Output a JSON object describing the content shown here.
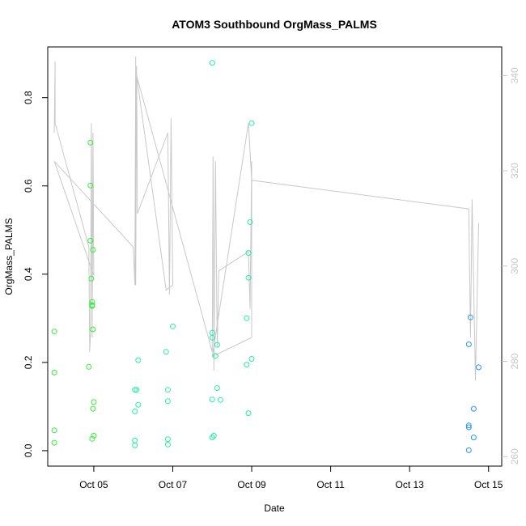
{
  "chart_data": {
    "type": "scatter",
    "title": "ATOM3 Southbound OrgMass_PALMS",
    "xlabel": "Date",
    "ylabel": "OrgMass_PALMS",
    "x_ticks": [
      "Oct 05",
      "Oct 07",
      "Oct 09",
      "Oct 11",
      "Oct 13",
      "Oct 15"
    ],
    "y_ticks": [
      "0.0",
      "0.2",
      "0.4",
      "0.6",
      "0.8"
    ],
    "y2_ticks": [
      "260",
      "280",
      "300",
      "320",
      "340"
    ],
    "xlim": [
      "Oct 03 20:00",
      "Oct 15 08:00"
    ],
    "ylim": [
      -0.035,
      0.915
    ],
    "y2lim": [
      258,
      346
    ],
    "colors": {
      "early_points": "#33ee33",
      "mid_points": "#22eeaa",
      "late_points": "#2299ee",
      "overlay_line": "#c8c8c8"
    },
    "series": [
      {
        "points": [
          [
            "Oct 04 00:00",
            0.27
          ],
          [
            "Oct 04 00:00",
            0.177
          ],
          [
            "Oct 04 00:00",
            0.046
          ],
          [
            "Oct 04 00:00",
            0.018
          ],
          [
            "Oct 04 21:00",
            0.19
          ],
          [
            "Oct 04 22:00",
            0.698
          ],
          [
            "Oct 04 22:00",
            0.601
          ],
          [
            "Oct 04 22:00",
            0.476
          ],
          [
            "Oct 04 22:30",
            0.39
          ],
          [
            "Oct 04 23:00",
            0.337
          ],
          [
            "Oct 04 23:00",
            0.33
          ],
          [
            "Oct 04 23:00",
            0.328
          ],
          [
            "Oct 04 23:00",
            0.027
          ],
          [
            "Oct 04 23:30",
            0.455
          ],
          [
            "Oct 04 23:30",
            0.275
          ],
          [
            "Oct 04 23:30",
            0.095
          ],
          [
            "Oct 05 00:00",
            0.11
          ],
          [
            "Oct 05 00:00",
            0.034
          ]
        ]
      },
      {
        "points": [
          [
            "Oct 06 01:00",
            0.138
          ],
          [
            "Oct 06 01:00",
            0.089
          ],
          [
            "Oct 06 01:00",
            0.023
          ],
          [
            "Oct 06 01:00",
            0.012
          ],
          [
            "Oct 06 02:00",
            0.138
          ],
          [
            "Oct 06 03:00",
            0.205
          ],
          [
            "Oct 06 03:00",
            0.104
          ],
          [
            "Oct 06 20:00",
            0.224
          ],
          [
            "Oct 06 21:00",
            0.138
          ],
          [
            "Oct 06 21:00",
            0.112
          ],
          [
            "Oct 06 21:00",
            0.026
          ],
          [
            "Oct 06 21:00",
            0.014
          ],
          [
            "Oct 07 00:00",
            0.282
          ]
        ]
      },
      {
        "points": [
          [
            "Oct 08 00:00",
            0.879
          ],
          [
            "Oct 08 00:00",
            0.267
          ],
          [
            "Oct 08 00:00",
            0.256
          ],
          [
            "Oct 08 00:00",
            0.116
          ],
          [
            "Oct 08 00:00",
            0.03
          ],
          [
            "Oct 08 01:00",
            0.034
          ],
          [
            "Oct 08 02:00",
            0.215
          ],
          [
            "Oct 08 03:00",
            0.24
          ],
          [
            "Oct 08 03:00",
            0.142
          ],
          [
            "Oct 08 05:00",
            0.115
          ],
          [
            "Oct 08 21:00",
            0.3
          ],
          [
            "Oct 08 21:00",
            0.195
          ],
          [
            "Oct 08 22:00",
            0.448
          ],
          [
            "Oct 08 22:00",
            0.392
          ],
          [
            "Oct 08 22:00",
            0.085
          ],
          [
            "Oct 08 23:00",
            0.518
          ],
          [
            "Oct 09 00:00",
            0.742
          ],
          [
            "Oct 09 00:00",
            0.208
          ]
        ]
      },
      {
        "points": [
          [
            "Oct 14 12:00",
            0.241
          ],
          [
            "Oct 14 12:00",
            0.057
          ],
          [
            "Oct 14 12:00",
            0.053
          ],
          [
            "Oct 14 12:00",
            0.001
          ],
          [
            "Oct 14 13:00",
            0.302
          ],
          [
            "Oct 14 15:00",
            0.095
          ],
          [
            "Oct 14 15:00",
            0.03
          ],
          [
            "Oct 14 18:00",
            0.189
          ]
        ]
      }
    ],
    "overlay_line": {
      "axis": "right",
      "points": [
        [
          "Oct 04 00:00",
          328
        ],
        [
          "Oct 04 00:30",
          343
        ],
        [
          "Oct 04 00:30",
          330
        ],
        [
          "Oct 04 21:00",
          304
        ],
        [
          "Oct 04 21:30",
          282
        ],
        [
          "Oct 04 22:00",
          286
        ],
        [
          "Oct 04 22:30",
          330
        ],
        [
          "Oct 04 23:00",
          285
        ],
        [
          "Oct 04 23:30",
          328
        ],
        [
          "Oct 05 00:00",
          298
        ],
        [
          "Oct 04 00:00",
          322
        ],
        [
          "Oct 06 00:00",
          304
        ],
        [
          "Oct 06 01:00",
          296
        ],
        [
          "Oct 06 01:30",
          344
        ],
        [
          "Oct 06 01:30",
          296
        ],
        [
          "Oct 06 02:00",
          342
        ],
        [
          "Oct 06 02:30",
          311
        ],
        [
          "Oct 06 21:00",
          328
        ],
        [
          "Oct 06 22:00",
          294
        ],
        [
          "Oct 06 23:00",
          331
        ],
        [
          "Oct 07 00:00",
          296
        ],
        [
          "Oct 06 20:00",
          295
        ],
        [
          "Oct 06 02:00",
          340
        ],
        [
          "Oct 08 00:00",
          282
        ],
        [
          "Oct 08 00:30",
          323
        ],
        [
          "Oct 08 01:00",
          278
        ],
        [
          "Oct 08 02:00",
          322
        ],
        [
          "Oct 08 03:00",
          283
        ],
        [
          "Oct 08 04:00",
          299
        ],
        [
          "Oct 08 22:00",
          303
        ],
        [
          "Oct 08 23:00",
          291
        ],
        [
          "Oct 09 00:00",
          322
        ],
        [
          "Oct 09 00:00",
          285
        ],
        [
          "Oct 08 00:00",
          281
        ],
        [
          "Oct 08 22:00",
          330
        ],
        [
          "Oct 09 00:00",
          318
        ],
        [
          "Oct 14 12:00",
          312
        ],
        [
          "Oct 14 13:00",
          285
        ],
        [
          "Oct 14 14:00",
          314
        ],
        [
          "Oct 14 16:00",
          276
        ],
        [
          "Oct 14 18:00",
          309
        ]
      ]
    }
  }
}
